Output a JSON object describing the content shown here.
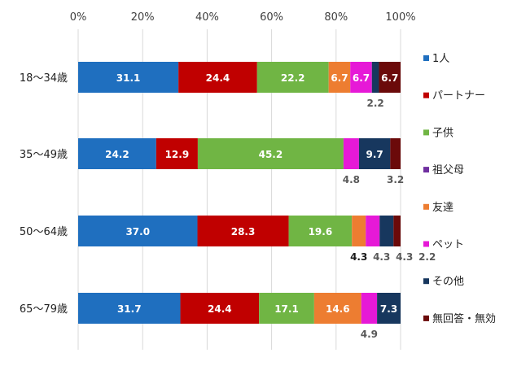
{
  "chart_data": {
    "type": "bar",
    "orientation": "horizontal",
    "stacked": true,
    "percent": true,
    "xlim": [
      0,
      100
    ],
    "x_ticks": [
      "0%",
      "20%",
      "40%",
      "60%",
      "80%",
      "100%"
    ],
    "grid": true,
    "legend_position": "right",
    "categories": [
      "18～34歳",
      "35～49歳",
      "50～64歳",
      "65～79歳"
    ],
    "series": [
      {
        "name": "1人",
        "color": "#1f6fbf",
        "values": [
          31.1,
          24.2,
          37.0,
          31.7
        ],
        "labels": [
          "31.1",
          "24.2",
          "37.0",
          "31.7"
        ]
      },
      {
        "name": "パートナー",
        "color": "#c00000",
        "values": [
          24.4,
          12.9,
          28.3,
          24.4
        ],
        "labels": [
          "24.4",
          "12.9",
          "28.3",
          "24.4"
        ]
      },
      {
        "name": "子供",
        "color": "#70b544",
        "values": [
          22.2,
          45.2,
          19.6,
          17.1
        ],
        "labels": [
          "22.2",
          "45.2",
          "19.6",
          "17.1"
        ]
      },
      {
        "name": "祖父母",
        "color": "#7030a0",
        "values": [
          0,
          0,
          0,
          0
        ],
        "labels": [
          "",
          "",
          "",
          ""
        ]
      },
      {
        "name": "友達",
        "color": "#ed7d31",
        "values": [
          6.7,
          0,
          4.3,
          14.6
        ],
        "labels": [
          "6.7",
          "",
          "4.3",
          "14.6"
        ]
      },
      {
        "name": "ペット",
        "color": "#e619d7",
        "values": [
          6.7,
          4.8,
          4.3,
          4.9
        ],
        "labels": [
          "6.7",
          "4.8",
          "4.3",
          "4.9"
        ]
      },
      {
        "name": "その他",
        "color": "#17375e",
        "values": [
          2.2,
          9.7,
          4.3,
          7.3
        ],
        "labels": [
          "2.2",
          "9.7",
          "4.3",
          "7.3"
        ]
      },
      {
        "name": "無回答・無効",
        "color": "#6b0a0a",
        "values": [
          6.7,
          3.2,
          2.2,
          0
        ],
        "labels": [
          "6.7",
          "3.2",
          "2.2",
          ""
        ]
      }
    ]
  }
}
